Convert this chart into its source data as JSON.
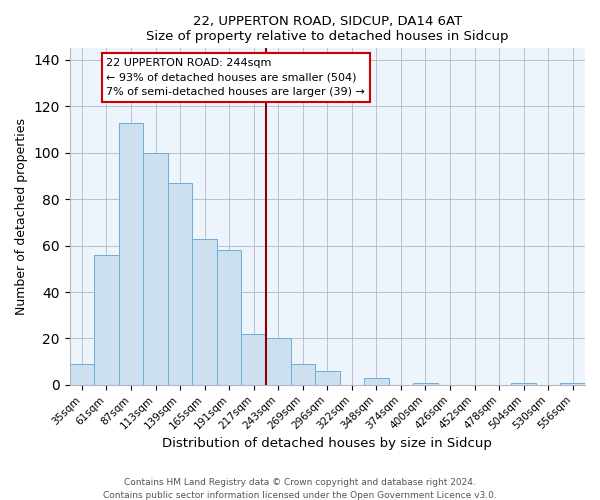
{
  "title1": "22, UPPERTON ROAD, SIDCUP, DA14 6AT",
  "title2": "Size of property relative to detached houses in Sidcup",
  "xlabel": "Distribution of detached houses by size in Sidcup",
  "ylabel": "Number of detached properties",
  "bar_color": "#cce0f0",
  "bar_edgecolor": "#6baed6",
  "bg_color": "#eef4fb",
  "categories": [
    "35sqm",
    "61sqm",
    "87sqm",
    "113sqm",
    "139sqm",
    "165sqm",
    "191sqm",
    "217sqm",
    "243sqm",
    "269sqm",
    "296sqm",
    "322sqm",
    "348sqm",
    "374sqm",
    "400sqm",
    "426sqm",
    "452sqm",
    "478sqm",
    "504sqm",
    "530sqm",
    "556sqm"
  ],
  "values": [
    9,
    56,
    113,
    100,
    87,
    63,
    58,
    22,
    20,
    9,
    6,
    0,
    3,
    0,
    1,
    0,
    0,
    0,
    1,
    0,
    1
  ],
  "highlight_bin": 8,
  "highlight_color": "#8b0000",
  "annotation_title": "22 UPPERTON ROAD: 244sqm",
  "annotation_line1": "← 93% of detached houses are smaller (504)",
  "annotation_line2": "7% of semi-detached houses are larger (39) →",
  "ylim": [
    0,
    145
  ],
  "yticks": [
    0,
    20,
    40,
    60,
    80,
    100,
    120,
    140
  ],
  "footer1": "Contains HM Land Registry data © Crown copyright and database right 2024.",
  "footer2": "Contains public sector information licensed under the Open Government Licence v3.0."
}
